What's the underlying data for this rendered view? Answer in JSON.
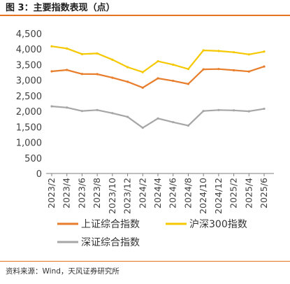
{
  "header": {
    "title": "图 3：主要指数表现（点）"
  },
  "footer": {
    "source": "资料来源：Wind，天风证券研究所"
  },
  "colors": {
    "accent_rule": "#e6731e"
  },
  "chart_data": {
    "type": "line",
    "title": "图 3：主要指数表现（点）",
    "xlabel": "",
    "ylabel": "",
    "ylim": [
      0,
      4500
    ],
    "yticks": [
      0,
      500,
      1000,
      1500,
      2000,
      2500,
      3000,
      3500,
      4000,
      4500
    ],
    "ytick_labels": [
      "0",
      "500",
      "1,000",
      "1,500",
      "2,000",
      "2,500",
      "3,000",
      "3,500",
      "4,000",
      "4,500"
    ],
    "x": [
      "2023/2",
      "2023/4",
      "2023/6",
      "2023/8",
      "2023/10",
      "2023/12",
      "2024/2",
      "2024/4",
      "2024/6",
      "2024/8",
      "2024/10",
      "2024/12",
      "2025/2",
      "2025/4",
      "2025/6"
    ],
    "grid": false,
    "legend_position": "bottom",
    "series": [
      {
        "name": "上证综合指数",
        "color": "#e87d2b",
        "values": [
          3285,
          3330,
          3200,
          3195,
          3080,
          2950,
          2760,
          3060,
          2980,
          2880,
          3350,
          3360,
          3320,
          3280,
          3440
        ]
      },
      {
        "name": "沪深300指数",
        "color": "#f5c800",
        "values": [
          4090,
          4020,
          3840,
          3860,
          3660,
          3420,
          3260,
          3610,
          3500,
          3360,
          3960,
          3940,
          3900,
          3830,
          3920
        ]
      },
      {
        "name": "深证综合指数",
        "color": "#a6a6a6",
        "values": [
          2160,
          2120,
          2010,
          2040,
          1940,
          1820,
          1470,
          1770,
          1650,
          1540,
          2010,
          2040,
          2030,
          2000,
          2080
        ]
      }
    ]
  }
}
